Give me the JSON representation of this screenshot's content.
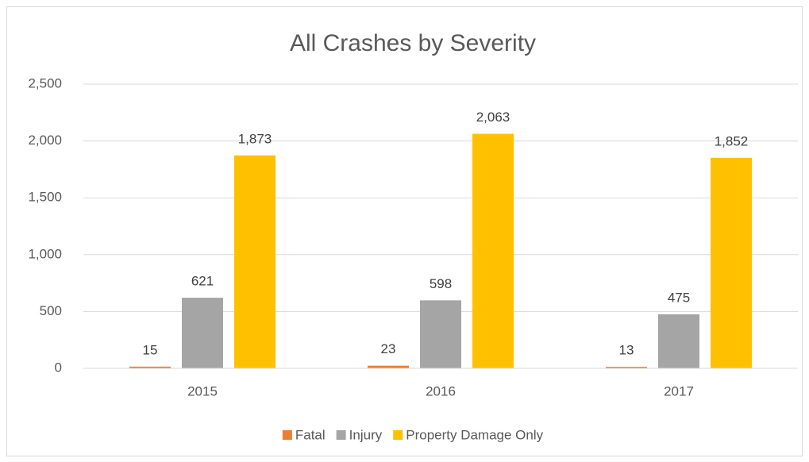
{
  "chart_data": {
    "type": "bar",
    "title": "All Crashes by Severity",
    "categories": [
      "2015",
      "2016",
      "2017"
    ],
    "series": [
      {
        "name": "Fatal",
        "color": "#ed7d31",
        "values": [
          15,
          23,
          13
        ]
      },
      {
        "name": "Injury",
        "color": "#a5a5a5",
        "values": [
          621,
          598,
          475
        ]
      },
      {
        "name": "Property Damage Only",
        "color": "#ffc000",
        "values": [
          1873,
          2063,
          1852
        ],
        "value_labels": [
          "1,873",
          "2,063",
          "1,852"
        ]
      }
    ],
    "ylim": [
      0,
      2500
    ],
    "yticks": [
      0,
      500,
      {
        "value": 1000,
        "label": "1,000"
      },
      {
        "value": 1500,
        "label": "1,500"
      },
      {
        "value": 2000,
        "label": "2,000"
      },
      {
        "value": 2500,
        "label": "2,500"
      }
    ],
    "grid": true,
    "legend": "bottom"
  }
}
